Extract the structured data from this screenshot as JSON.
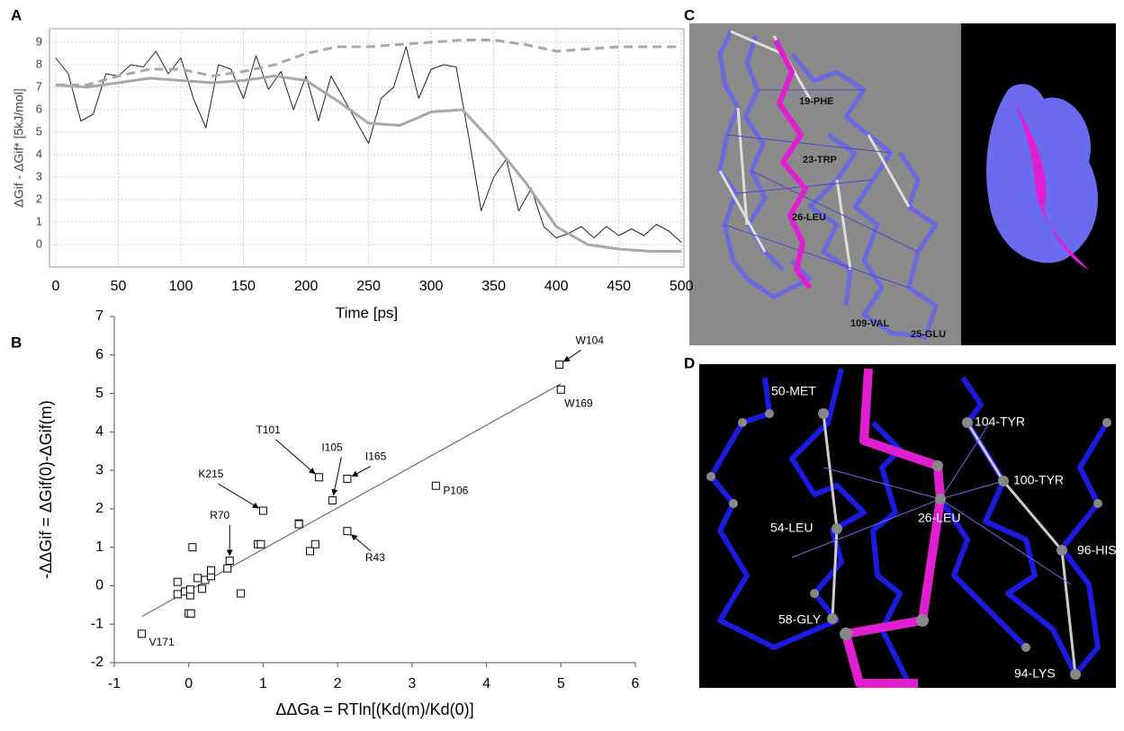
{
  "panel_labels": [
    "A",
    "B",
    "C",
    "D"
  ],
  "chart_data": [
    {
      "type": "line",
      "x_label": "Time [ps]",
      "y_label": "ΔGif - ΔGif* [5kJ/mol]",
      "xlim": [
        -5,
        502
      ],
      "xticks": [
        0,
        50,
        100,
        150,
        200,
        250,
        300,
        350,
        400,
        450,
        500
      ],
      "ylim": [
        -1,
        9.6
      ],
      "yticks": [
        0,
        1,
        2,
        3,
        4,
        5,
        6,
        7,
        8,
        9
      ],
      "grid": true,
      "series": [
        {
          "color": "#222222",
          "style": "solid",
          "width": 1,
          "x": [
            0,
            10,
            20,
            30,
            40,
            50,
            60,
            70,
            80,
            90,
            100,
            110,
            120,
            130,
            140,
            150,
            160,
            170,
            180,
            190,
            200,
            210,
            220,
            230,
            240,
            250,
            260,
            270,
            280,
            290,
            300,
            310,
            320,
            330,
            340,
            350,
            360,
            370,
            380,
            390,
            400,
            410,
            420,
            430,
            440,
            450,
            460,
            470,
            480,
            490,
            500
          ],
          "values": [
            8.3,
            7.6,
            5.5,
            5.8,
            7.6,
            7.5,
            8.0,
            7.9,
            8.6,
            7.6,
            8.3,
            6.5,
            5.2,
            8.0,
            7.8,
            6.5,
            8.4,
            6.9,
            7.7,
            6.0,
            7.5,
            5.5,
            7.5,
            6.5,
            5.5,
            4.5,
            6.5,
            7.0,
            8.8,
            6.5,
            7.8,
            8.0,
            7.9,
            4.8,
            1.5,
            3.0,
            3.8,
            1.5,
            2.5,
            0.8,
            0.3,
            0.5,
            0.8,
            0.3,
            0.8,
            0.4,
            0.7,
            0.4,
            0.9,
            0.6,
            0.1
          ]
        },
        {
          "color": "#a8a8a8",
          "style": "solid",
          "width": 3,
          "x": [
            0,
            25,
            50,
            75,
            100,
            125,
            150,
            175,
            200,
            225,
            250,
            275,
            300,
            325,
            350,
            375,
            400,
            425,
            450,
            475,
            500
          ],
          "values": [
            7.1,
            7.0,
            7.2,
            7.4,
            7.3,
            7.2,
            7.3,
            7.5,
            7.3,
            6.4,
            5.4,
            5.3,
            5.9,
            6.0,
            4.5,
            2.8,
            0.8,
            0.0,
            -0.2,
            -0.3,
            -0.3
          ]
        },
        {
          "color": "#a8a8a8",
          "style": "dashed",
          "width": 3,
          "x": [
            0,
            25,
            50,
            75,
            100,
            125,
            150,
            175,
            200,
            225,
            250,
            275,
            300,
            325,
            350,
            375,
            400,
            425,
            450,
            475,
            500
          ],
          "values": [
            7.1,
            7.1,
            7.5,
            7.8,
            7.8,
            7.5,
            7.7,
            8.0,
            8.5,
            8.8,
            8.8,
            8.9,
            9.0,
            9.1,
            9.1,
            8.9,
            8.6,
            8.7,
            8.8,
            8.8,
            8.8
          ]
        }
      ]
    },
    {
      "type": "scatter",
      "x_label": "ΔΔGa = RTln[(Kd(m)/Kd(0)]",
      "y_label": "-ΔΔGif = ΔGif(0)-ΔGif(m)",
      "xlim": [
        -1,
        6
      ],
      "xticks": [
        -1,
        0,
        1,
        2,
        3,
        4,
        5,
        6
      ],
      "ylim": [
        -2,
        7
      ],
      "yticks": [
        -2,
        -1,
        0,
        1,
        2,
        3,
        4,
        5,
        6,
        7
      ],
      "color": "#000000",
      "x": [
        -0.63,
        -0.15,
        -0.15,
        -0.05,
        0,
        0.03,
        0.02,
        0.05,
        0.02,
        0.12,
        0.18,
        0.22,
        0.3,
        0.3,
        0.52,
        0.55,
        0.7,
        0.93,
        0.97,
        1.0,
        1.48,
        1.48,
        1.63,
        1.7,
        1.75,
        1.93,
        2.13,
        2.13,
        3.32,
        4.98,
        5.0
      ],
      "values": [
        -1.25,
        0.1,
        -0.22,
        -0.15,
        -0.72,
        -0.72,
        -0.25,
        1.0,
        -0.1,
        0.2,
        -0.08,
        0.15,
        0.25,
        0.4,
        0.45,
        0.65,
        -0.2,
        1.08,
        1.08,
        1.95,
        1.62,
        1.6,
        0.9,
        1.08,
        2.82,
        2.22,
        2.78,
        1.42,
        2.6,
        5.75,
        5.1
      ],
      "point_labels": [
        "V171",
        null,
        null,
        null,
        null,
        null,
        null,
        null,
        null,
        null,
        null,
        null,
        null,
        null,
        null,
        "R70",
        null,
        null,
        null,
        "K215",
        null,
        null,
        null,
        null,
        "T101",
        "I105",
        "I165",
        "R43",
        "P106",
        "W104",
        "W169"
      ],
      "fit_line": {
        "x": [
          -0.63,
          5.0
        ],
        "values": [
          -0.8,
          5.25
        ]
      }
    }
  ],
  "panel_c_labels": [
    "19-PHE",
    "23-TRP",
    "26-LEU",
    "109-VAL",
    "25-GLU"
  ],
  "panel_d_labels": [
    "50-MET",
    "104-TYR",
    "100-TYR",
    "54-LEU",
    "96-HIS",
    "26-LEU",
    "58-GLY",
    "94-LYS"
  ]
}
